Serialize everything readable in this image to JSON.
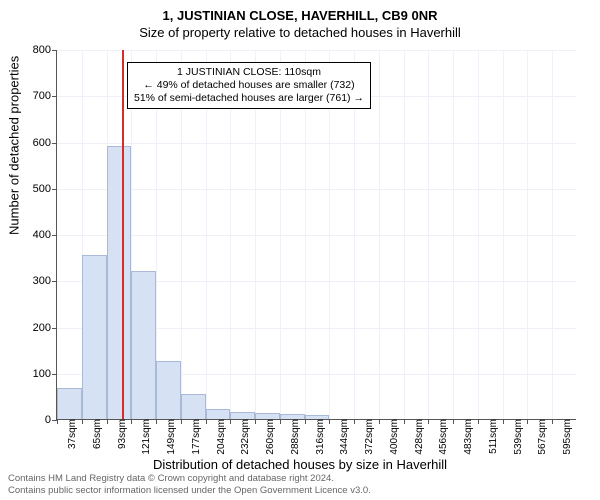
{
  "title": "1, JUSTINIAN CLOSE, HAVERHILL, CB9 0NR",
  "subtitle": "Size of property relative to detached houses in Haverhill",
  "ylabel": "Number of detached properties",
  "xlabel": "Distribution of detached houses by size in Haverhill",
  "chart": {
    "type": "histogram",
    "ylim": [
      0,
      800
    ],
    "ytick_step": 100,
    "bar_fill": "#d6e1f4",
    "bar_stroke": "#a9b9d8",
    "grid_color": "#eef1f7",
    "background_color": "#ffffff",
    "axis_color": "#555555",
    "vline_color": "#d82b2b",
    "vline_x": 110,
    "x_start": 37,
    "x_step": 28,
    "x_unit": "sqm",
    "x_categories": [
      "37sqm",
      "65sqm",
      "93sqm",
      "121sqm",
      "149sqm",
      "177sqm",
      "204sqm",
      "232sqm",
      "260sqm",
      "288sqm",
      "316sqm",
      "344sqm",
      "372sqm",
      "400sqm",
      "428sqm",
      "456sqm",
      "483sqm",
      "511sqm",
      "539sqm",
      "567sqm",
      "595sqm"
    ],
    "values": [
      68,
      355,
      590,
      320,
      125,
      55,
      22,
      15,
      12,
      10,
      8,
      0,
      0,
      0,
      0,
      0,
      0,
      0,
      0,
      0,
      0
    ],
    "bar_width_ratio": 1.0
  },
  "annotation": {
    "line1": "1 JUSTINIAN CLOSE: 110sqm",
    "line2": "← 49% of detached houses are smaller (732)",
    "line3": "51% of semi-detached houses are larger (761) →",
    "border_color": "#000000",
    "background": "#ffffff",
    "font_size": 10.5
  },
  "footer": {
    "line1": "Contains HM Land Registry data © Crown copyright and database right 2024.",
    "line2": "Contains public sector information licensed under the Open Government Licence v3.0.",
    "color": "#666666"
  }
}
